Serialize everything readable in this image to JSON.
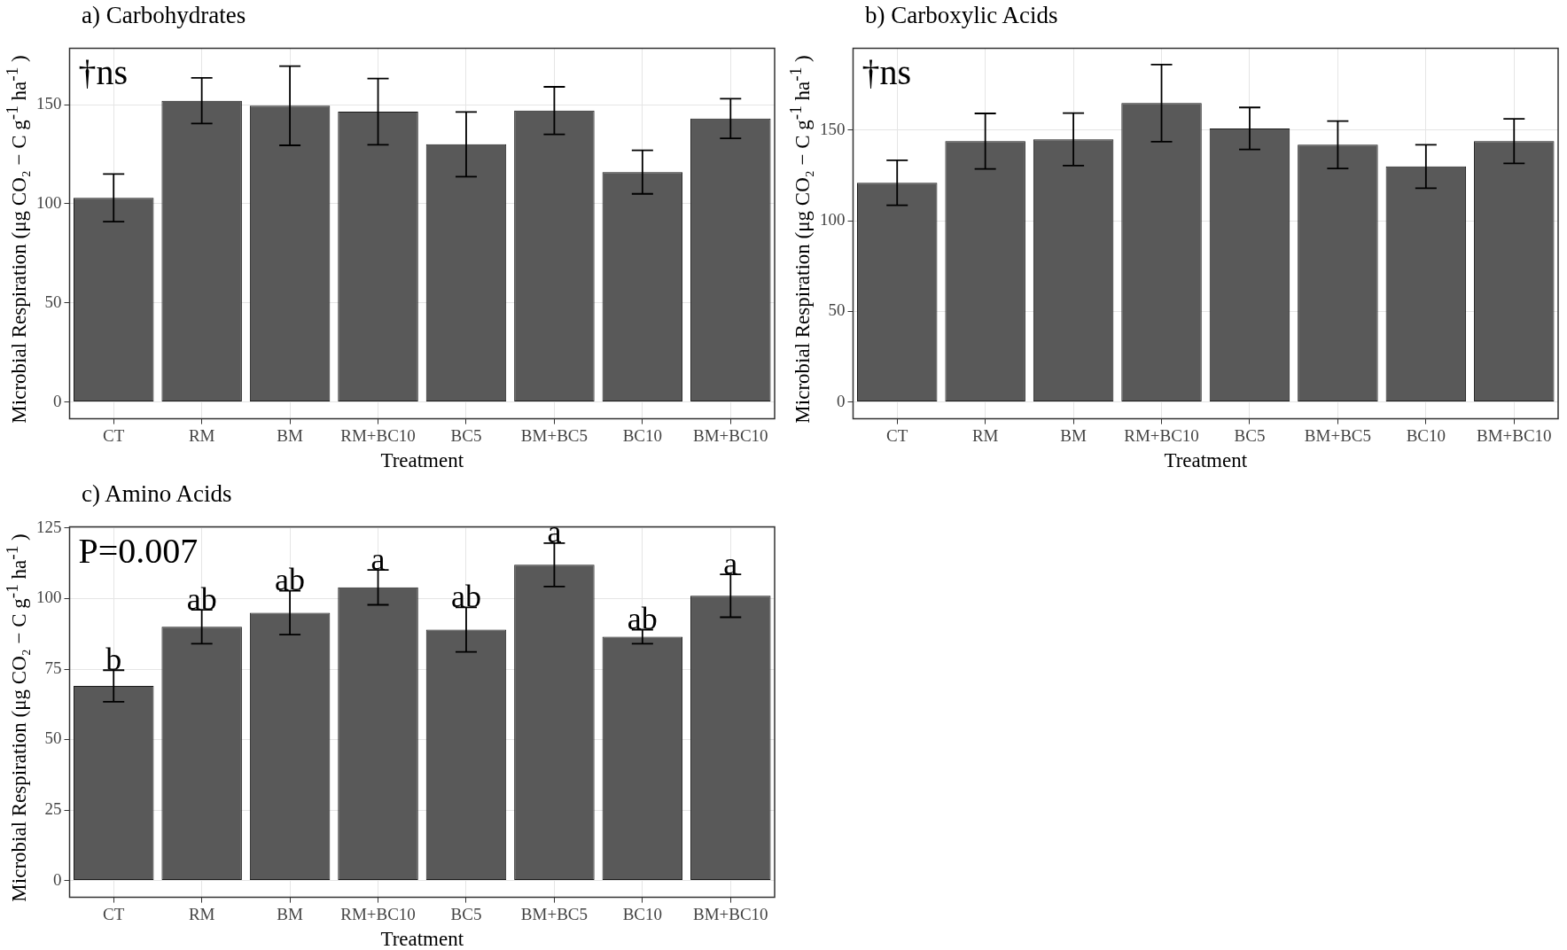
{
  "chart_data": [
    {
      "type": "bar",
      "title": "a) Carbohydrates",
      "xlabel": "Treatment",
      "ylabel": "Microbial Respiration (μg CO₂ − C g$^{-1}$ ha$^{-1}$ )",
      "categories": [
        "CT",
        "RM",
        "BM",
        "RM+BC10",
        "BC5",
        "BM+BC5",
        "BC10",
        "BM+BC10"
      ],
      "values": [
        103,
        152,
        149.5,
        146.5,
        130,
        147,
        116,
        143
      ],
      "errors": [
        12,
        11.5,
        20,
        16.7,
        16.3,
        12,
        11,
        10
      ],
      "color": "#595959",
      "ylim": [
        -8.5,
        178.5
      ],
      "yticks": [
        0,
        50,
        100,
        150
      ],
      "grid": true,
      "legend": false,
      "annotations": [
        "†ns"
      ]
    },
    {
      "type": "bar",
      "title": "b) Carboxylic Acids",
      "xlabel": "Treatment",
      "ylabel": "Microbial Respiration (μg CO₂ − C g$^{-1}$ ha$^{-1}$ )",
      "categories": [
        "CT",
        "RM",
        "BM",
        "RM+BC10",
        "BC5",
        "BM+BC5",
        "BC10",
        "BM+BC10"
      ],
      "values": [
        121,
        144,
        145,
        165,
        151,
        142,
        130,
        144
      ],
      "errors": [
        12.4,
        15.3,
        14.5,
        21.3,
        11.6,
        13.1,
        12,
        12.3
      ],
      "color": "#595959",
      "ylim": [
        -9.3,
        195.3
      ],
      "yticks": [
        0,
        50,
        100,
        150
      ],
      "grid": true,
      "legend": false,
      "annotations": [
        "†ns"
      ]
    },
    {
      "type": "bar",
      "title": "c) Amino Acids",
      "xlabel": "Treatment",
      "ylabel": "Microbial Respiration (μg CO₂ − C g$^{-1}$ ha$^{-1}$ )",
      "categories": [
        "CT",
        "RM",
        "BM",
        "RM+BC10",
        "BC5",
        "BM+BC5",
        "BC10",
        "BM+BC10"
      ],
      "values": [
        69,
        90,
        95,
        104,
        89,
        112,
        86.5,
        101
      ],
      "errors": [
        5.6,
        6,
        7.8,
        6.2,
        7.9,
        7.7,
        2.5,
        7.6
      ],
      "color": "#595959",
      "ylim": [
        -6,
        125.5
      ],
      "yticks": [
        0,
        25,
        50,
        75,
        100,
        125
      ],
      "grid": true,
      "legend": false,
      "annotations": [
        "P=0.007",
        {
          "text": "b",
          "x": "CT",
          "y": 74.6
        },
        {
          "text": "ab",
          "x": "RM",
          "y": 96
        },
        {
          "text": "ab",
          "x": "BM",
          "y": 102.8
        },
        {
          "text": "a",
          "x": "RM+BC10",
          "y": 110.2
        },
        {
          "text": "ab",
          "x": "BC5",
          "y": 96.9
        },
        {
          "text": "a",
          "x": "BM+BC5",
          "y": 119.7
        },
        {
          "text": "ab",
          "x": "BC10",
          "y": 89
        },
        {
          "text": "a",
          "x": "BM+BC10",
          "y": 108.6
        }
      ]
    }
  ]
}
